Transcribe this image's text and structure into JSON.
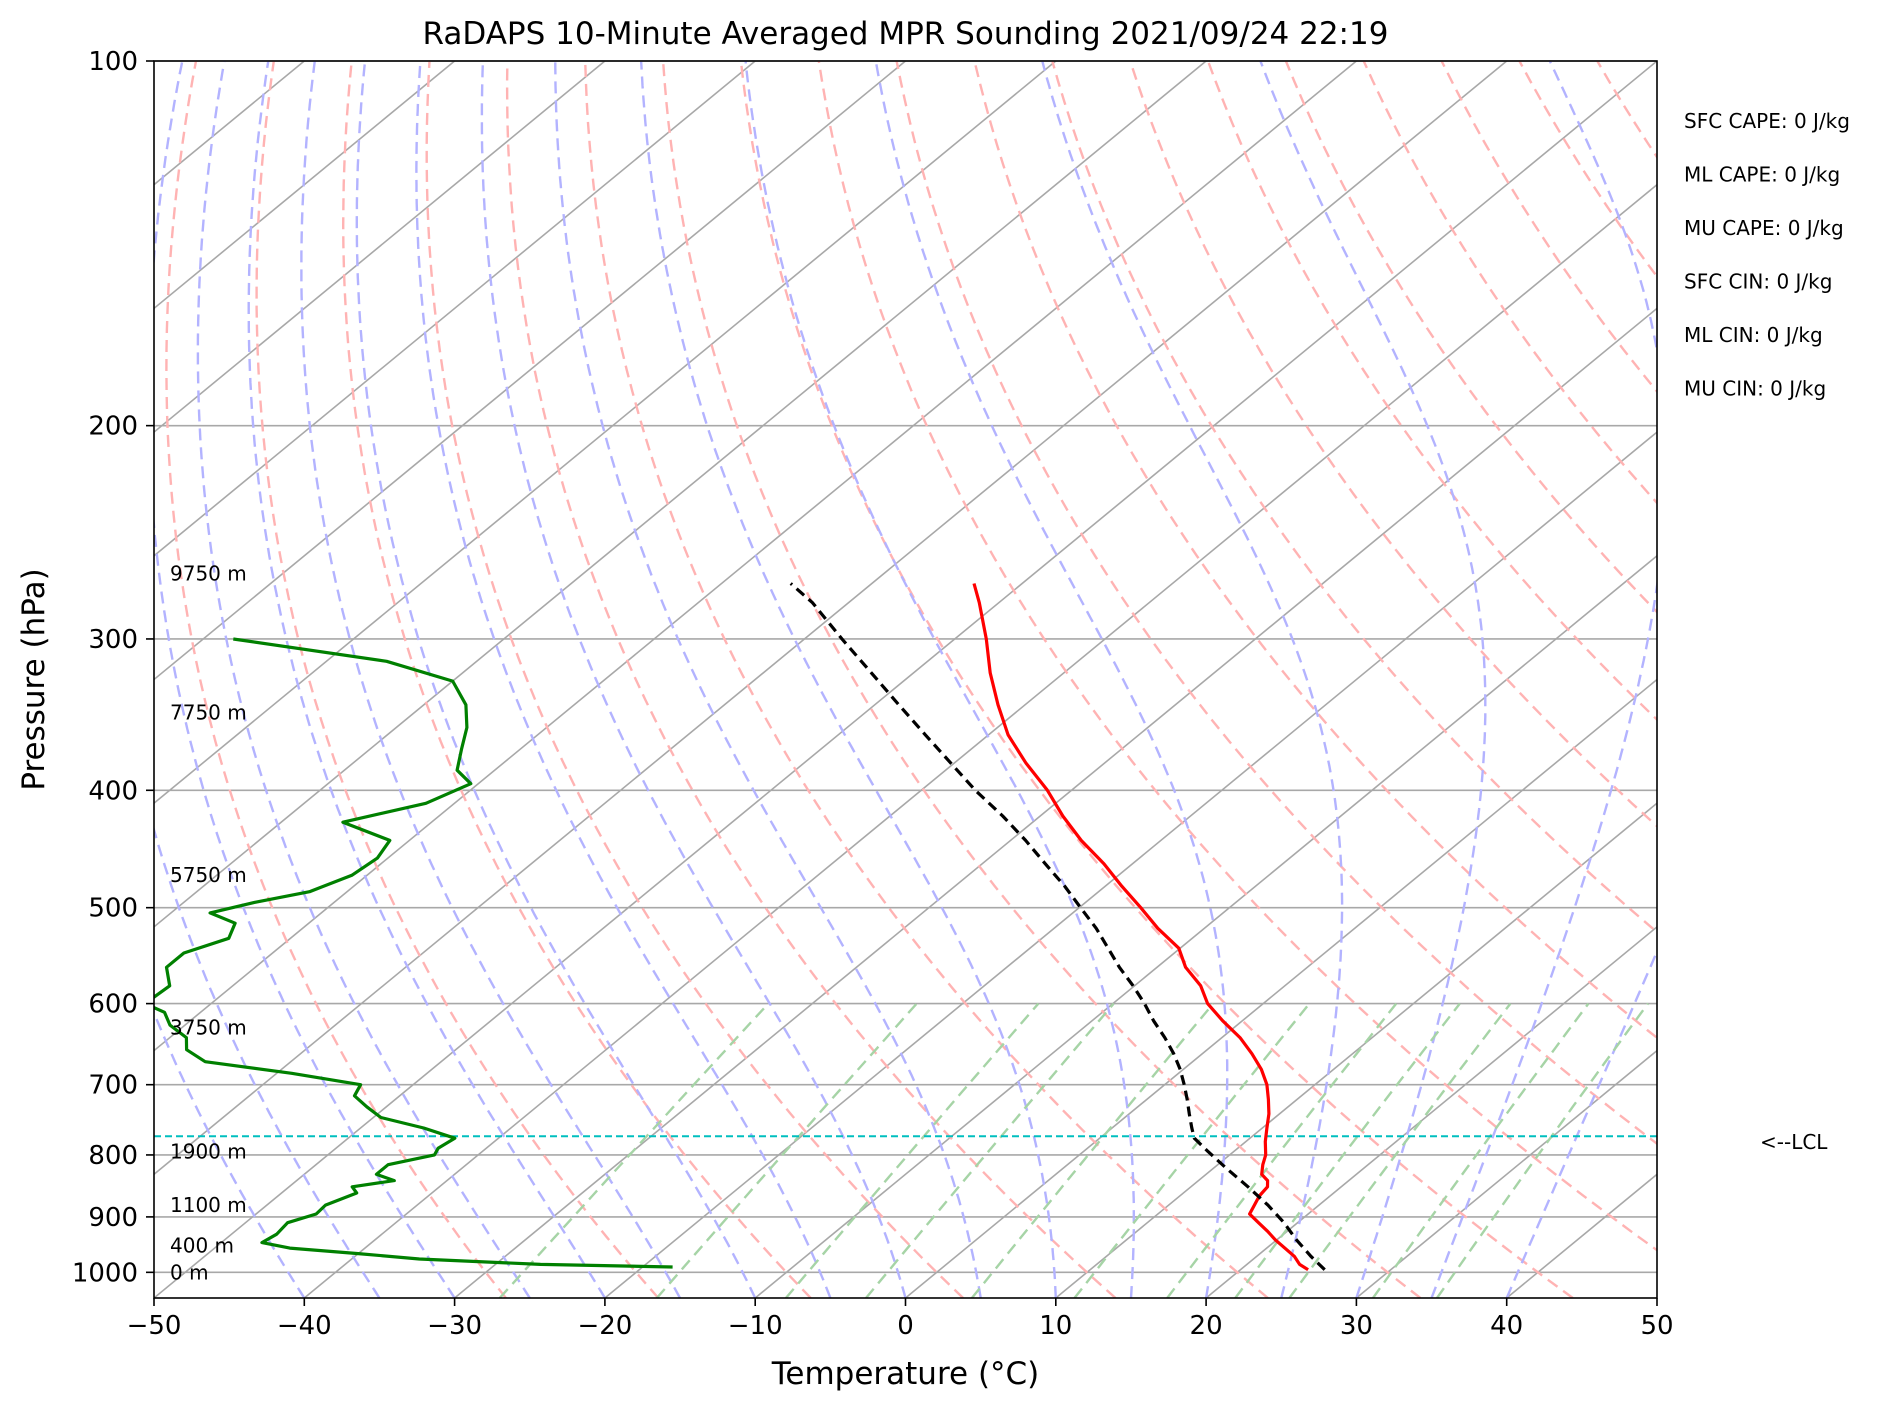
{
  "chart_data": {
    "type": "line",
    "title": "RaDAPS 10-Minute Averaged MPR Sounding 2021/09/24 22:19",
    "xlabel": "Temperature (°C)",
    "ylabel": "Pressure (hPa)",
    "xlim": [
      -50,
      50
    ],
    "ylim": [
      1050,
      100
    ],
    "y_scale": "log",
    "skew": "skew-T log-P diagram (isotherms slanted)",
    "grid": true,
    "x_ticks": [
      -50,
      -40,
      -30,
      -20,
      -10,
      0,
      10,
      20,
      30,
      40,
      50
    ],
    "x_tick_labels": [
      "−50",
      "−40",
      "−30",
      "−20",
      "−10",
      "0",
      "10",
      "20",
      "30",
      "40",
      "50"
    ],
    "y_ticks": [
      1000,
      900,
      800,
      700,
      600,
      500,
      400,
      300,
      200,
      100
    ],
    "y_tick_labels": [
      "1000",
      "900",
      "800",
      "700",
      "600",
      "500",
      "400",
      "300",
      "200",
      "100"
    ],
    "series": [
      {
        "color": "#ff0000",
        "p": [
          995,
          985,
          970,
          955,
          940,
          925,
          910,
          895,
          880,
          865,
          850,
          840,
          830,
          815,
          800,
          780,
          760,
          740,
          720,
          700,
          680,
          660,
          640,
          620,
          600,
          580,
          560,
          540,
          520,
          500,
          480,
          460,
          440,
          420,
          400,
          380,
          360,
          340,
          320,
          300,
          280,
          270
        ],
        "t": [
          24.5,
          23.5,
          22.5,
          21.2,
          19.9,
          18.7,
          17.4,
          16.1,
          15.7,
          15.3,
          15.1,
          14.6,
          13.7,
          13.0,
          12.4,
          11.3,
          10.3,
          9.3,
          8.1,
          6.8,
          5.2,
          3.3,
          1.2,
          -1.3,
          -3.7,
          -5.6,
          -8.1,
          -10.1,
          -13.1,
          -15.9,
          -18.9,
          -21.9,
          -25.3,
          -28.5,
          -31.6,
          -35.2,
          -38.7,
          -41.8,
          -44.9,
          -47.9,
          -51.3,
          -53.2
        ]
      },
      {
        "color": "#008000",
        "p": [
          990,
          985,
          975,
          965,
          955,
          945,
          930,
          910,
          895,
          880,
          860,
          850,
          840,
          830,
          815,
          800,
          790,
          775,
          760,
          745,
          730,
          715,
          700,
          685,
          670,
          655,
          640,
          625,
          610,
          600,
          580,
          560,
          545,
          530,
          515,
          505,
          495,
          485,
          470,
          455,
          440,
          425,
          410,
          395,
          385,
          370,
          355,
          340,
          325,
          313,
          300
        ],
        "t": [
          -18.0,
          -27.0,
          -35.5,
          -40.0,
          -45.0,
          -47.3,
          -47.0,
          -47.2,
          -46.0,
          -46.1,
          -45.0,
          -45.8,
          -43.5,
          -45.2,
          -45.2,
          -42.9,
          -43.2,
          -42.9,
          -45.8,
          -49.5,
          -51.3,
          -53.0,
          -53.5,
          -59.0,
          -65.7,
          -67.9,
          -68.9,
          -71.0,
          -72.4,
          -74.4,
          -74.2,
          -75.9,
          -75.9,
          -74.1,
          -74.9,
          -77.4,
          -75.3,
          -72.5,
          -71.0,
          -70.7,
          -71.3,
          -75.9,
          -71.9,
          -70.5,
          -72.5,
          -73.9,
          -75.3,
          -77.2,
          -80.0,
          -86.0,
          -98.0
        ]
      },
      {
        "color": "#000000",
        "dashed": true,
        "p": [
          995,
          970,
          940,
          910,
          880,
          850,
          820,
          795,
          775,
          760,
          740,
          720,
          700,
          680,
          660,
          640,
          620,
          600,
          580,
          560,
          540,
          520,
          500,
          480,
          460,
          440,
          420,
          400,
          380,
          360,
          340,
          320,
          300,
          280,
          270
        ],
        "t": [
          25.6,
          23.6,
          21.3,
          19.1,
          16.6,
          13.8,
          10.8,
          8.3,
          6.3,
          5.3,
          4.0,
          2.7,
          1.3,
          -0.2,
          -1.9,
          -3.8,
          -5.9,
          -7.9,
          -10.1,
          -12.5,
          -14.8,
          -17.2,
          -19.9,
          -22.7,
          -25.8,
          -29.0,
          -32.5,
          -36.4,
          -40.2,
          -44.2,
          -48.4,
          -52.8,
          -57.5,
          -62.4,
          -65.4
        ]
      }
    ],
    "lcl_pressure": 772,
    "lcl_label": "<--LCL",
    "height_labels": [
      {
        "p": 1000,
        "text": "0 m"
      },
      {
        "p": 950,
        "text": "400 m"
      },
      {
        "p": 880,
        "text": "1100 m"
      },
      {
        "p": 795,
        "text": "1900 m"
      },
      {
        "p": 628,
        "text": "3750 m"
      },
      {
        "p": 470,
        "text": "5750 m"
      },
      {
        "p": 345,
        "text": "7750 m"
      },
      {
        "p": 265,
        "text": "9750 m"
      }
    ],
    "indices": [
      "SFC CAPE: 0 J/kg",
      "ML CAPE: 0 J/kg",
      "MU CAPE: 0 J/kg",
      "SFC CIN: 0 J/kg",
      "ML CIN: 0 J/kg",
      "MU CIN: 0 J/kg"
    ],
    "background_line_colors": {
      "isotherm": "#a8a8a8",
      "dry_adiabat": "#ffb3b3",
      "moist_adiabat": "#b3b3ff",
      "mixing_ratio": "#a6d4a6",
      "lcl": "#00bfbf"
    }
  }
}
